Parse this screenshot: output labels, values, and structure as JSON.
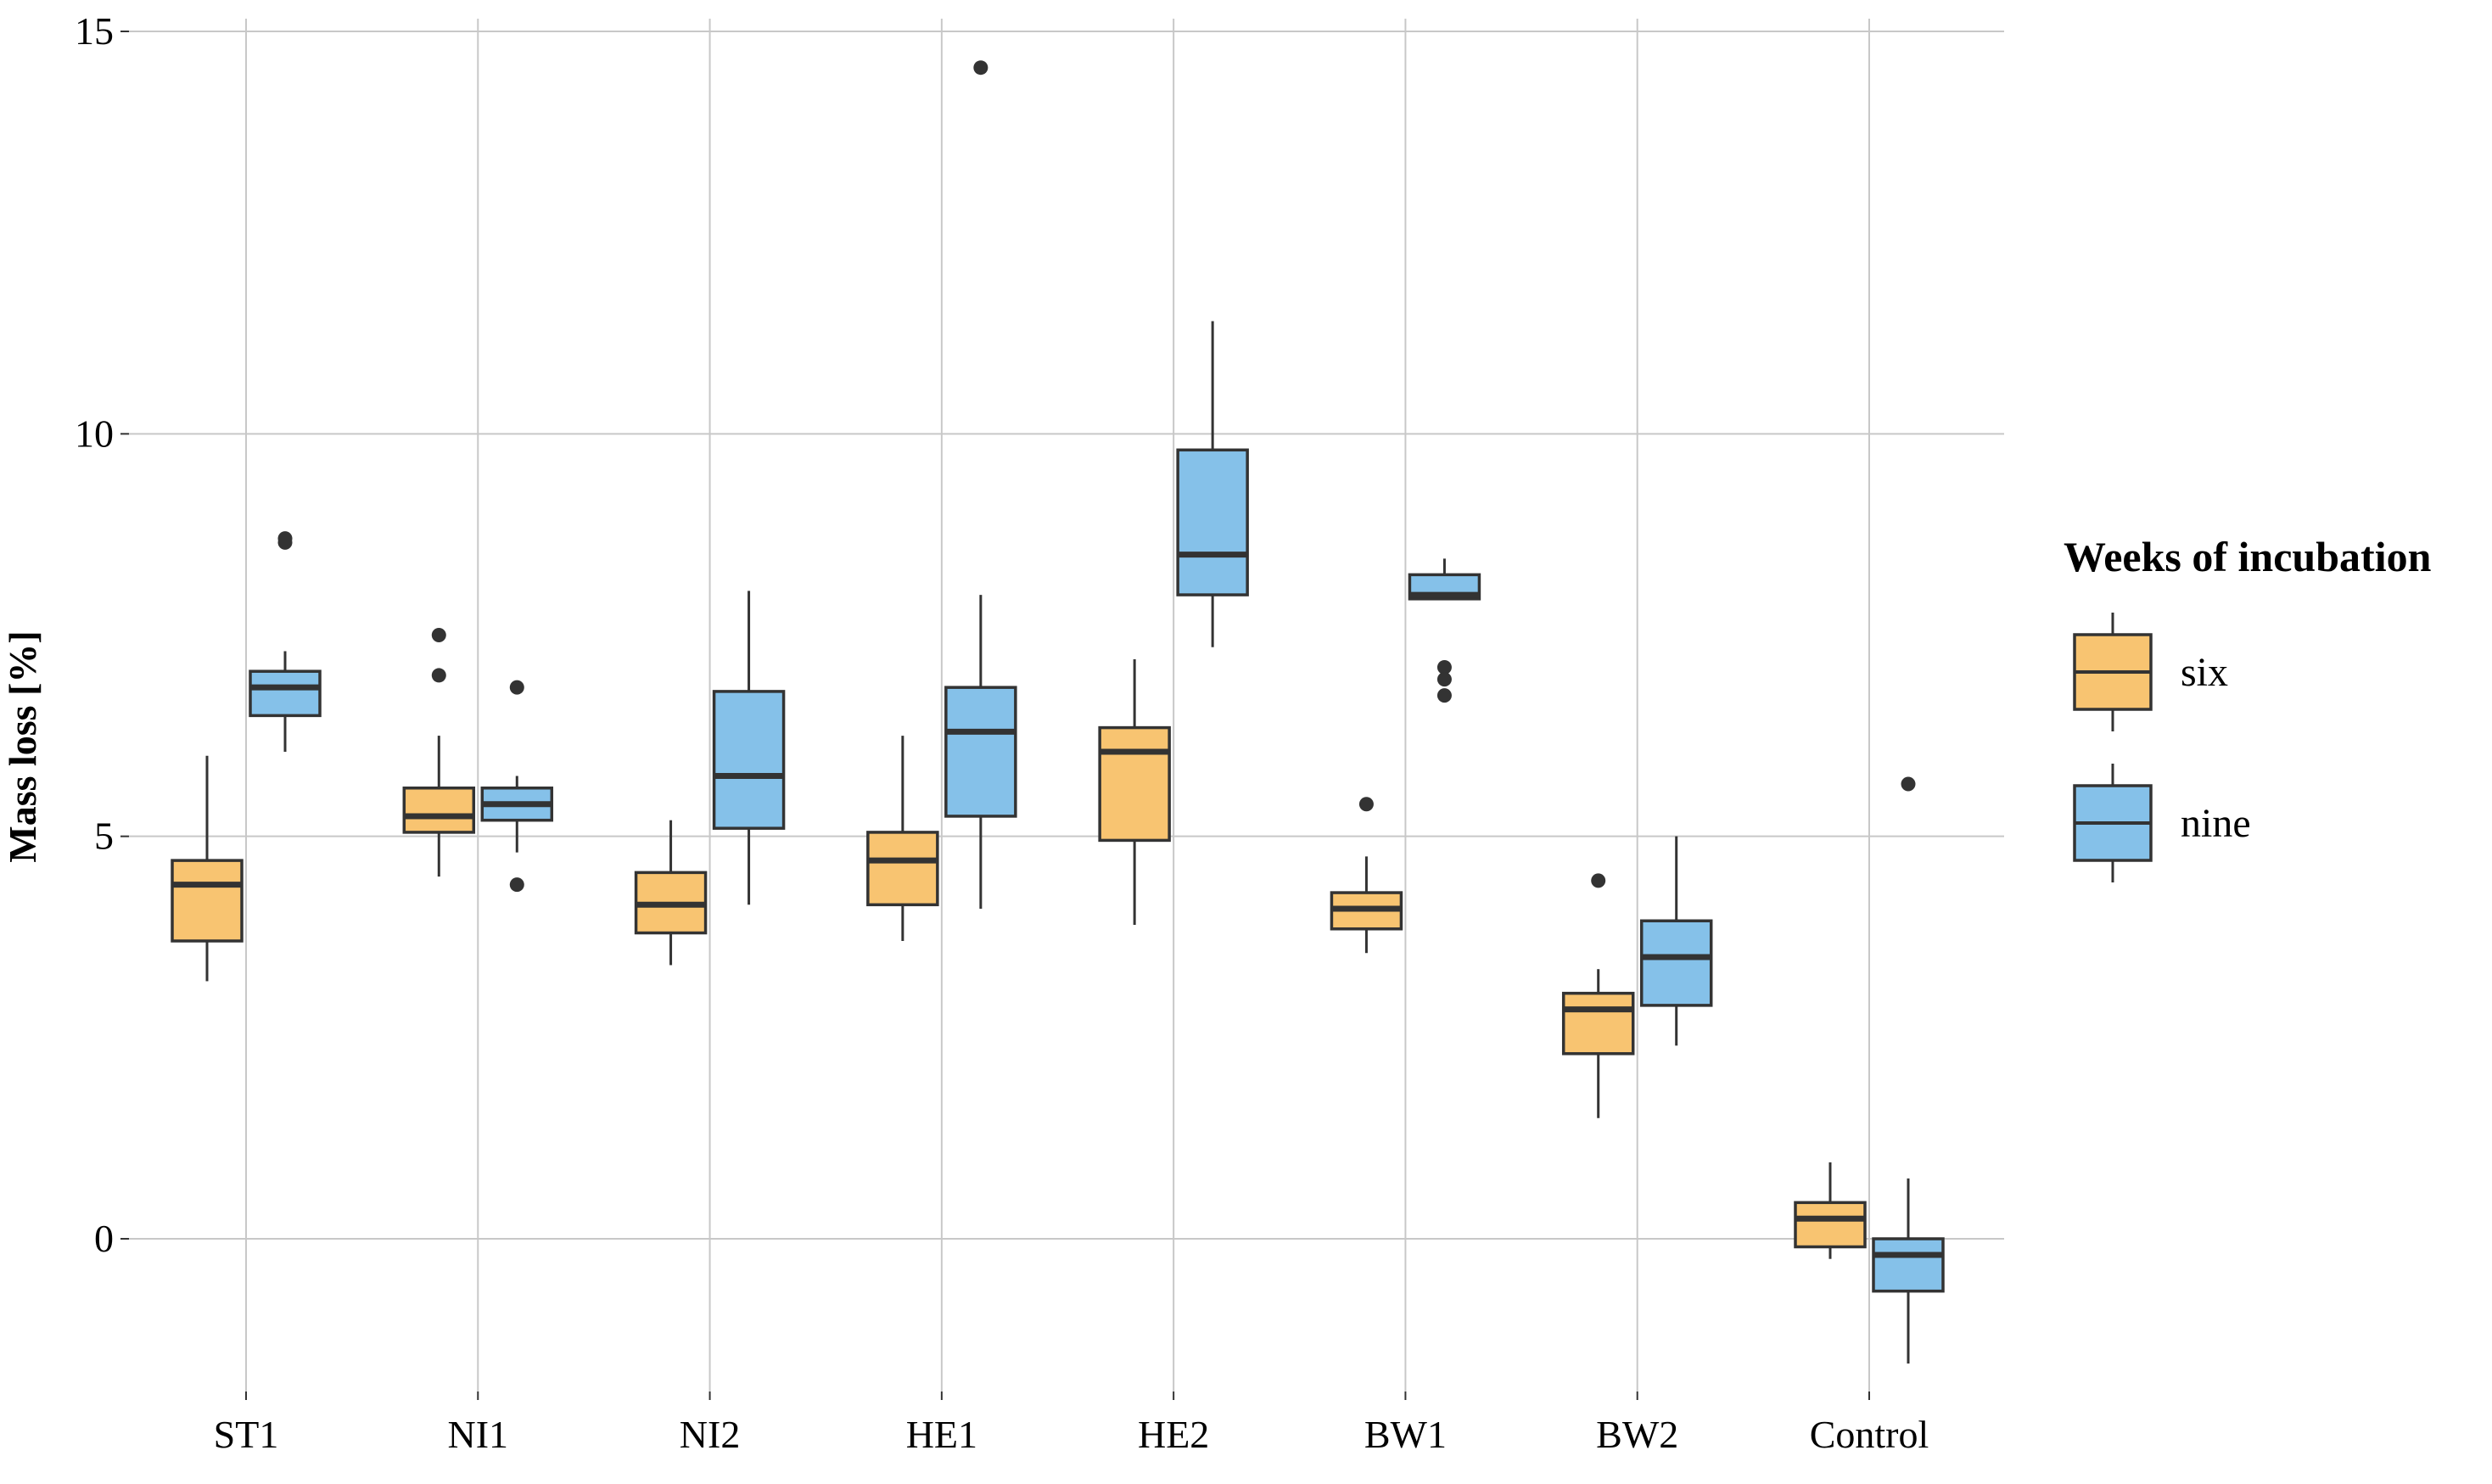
{
  "chart_data": {
    "type": "boxplot",
    "title": "",
    "xlabel": "",
    "ylabel": "Mass loss [%]",
    "ylim": [
      -2.0,
      15.0
    ],
    "yticks": [
      0,
      5,
      10,
      15
    ],
    "ytick_labels": [
      "0",
      "5",
      "10",
      "15"
    ],
    "categories": [
      "ST1",
      "NI1",
      "NI2",
      "HE1",
      "HE2",
      "BW1",
      "BW2",
      "Control"
    ],
    "grid": true,
    "legend": {
      "title": "Weeks of incubation",
      "position": "right",
      "entries": [
        {
          "label": "six",
          "color": "#F8C471"
        },
        {
          "label": "nine",
          "color": "#85C1E9"
        }
      ]
    },
    "series": [
      {
        "name": "six",
        "color": "#F8C471",
        "boxes": [
          {
            "category": "ST1",
            "whisker_low": 3.2,
            "q1": 3.7,
            "median": 4.4,
            "q3": 4.7,
            "whisker_high": 6.0,
            "outliers": []
          },
          {
            "category": "NI1",
            "whisker_low": 4.5,
            "q1": 5.05,
            "median": 5.25,
            "q3": 5.6,
            "whisker_high": 6.25,
            "outliers": [
              7.0,
              7.5
            ]
          },
          {
            "category": "NI2",
            "whisker_low": 3.4,
            "q1": 3.8,
            "median": 4.15,
            "q3": 4.55,
            "whisker_high": 5.2,
            "outliers": []
          },
          {
            "category": "HE1",
            "whisker_low": 3.7,
            "q1": 4.15,
            "median": 4.7,
            "q3": 5.05,
            "whisker_high": 6.25,
            "outliers": []
          },
          {
            "category": "HE2",
            "whisker_low": 3.9,
            "q1": 4.95,
            "median": 6.05,
            "q3": 6.35,
            "whisker_high": 7.2,
            "outliers": []
          },
          {
            "category": "BW1",
            "whisker_low": 3.55,
            "q1": 3.85,
            "median": 4.1,
            "q3": 4.3,
            "whisker_high": 4.75,
            "outliers": [
              5.4
            ]
          },
          {
            "category": "BW2",
            "whisker_low": 1.5,
            "q1": 2.3,
            "median": 2.85,
            "q3": 3.05,
            "whisker_high": 3.35,
            "outliers": [
              4.45
            ]
          },
          {
            "category": "Control",
            "whisker_low": -0.25,
            "q1": -0.1,
            "median": 0.25,
            "q3": 0.45,
            "whisker_high": 0.95,
            "outliers": []
          }
        ]
      },
      {
        "name": "nine",
        "color": "#85C1E9",
        "boxes": [
          {
            "category": "ST1",
            "whisker_low": 6.05,
            "q1": 6.5,
            "median": 6.85,
            "q3": 7.05,
            "whisker_high": 7.3,
            "outliers": [
              8.65,
              8.7
            ]
          },
          {
            "category": "NI1",
            "whisker_low": 4.8,
            "q1": 5.2,
            "median": 5.4,
            "q3": 5.6,
            "whisker_high": 5.75,
            "outliers": [
              6.85,
              4.4
            ]
          },
          {
            "category": "NI2",
            "whisker_low": 4.15,
            "q1": 5.1,
            "median": 5.75,
            "q3": 6.8,
            "whisker_high": 8.05,
            "outliers": []
          },
          {
            "category": "HE1",
            "whisker_low": 4.1,
            "q1": 5.25,
            "median": 6.3,
            "q3": 6.85,
            "whisker_high": 8.0,
            "outliers": [
              14.55
            ]
          },
          {
            "category": "HE2",
            "whisker_low": 7.35,
            "q1": 8.0,
            "median": 8.5,
            "q3": 9.8,
            "whisker_high": 11.4,
            "outliers": []
          },
          {
            "category": "BW1",
            "whisker_low": 7.95,
            "q1": 7.95,
            "median": 8.0,
            "q3": 8.25,
            "whisker_high": 8.45,
            "outliers": [
              7.1,
              6.95,
              6.75
            ]
          },
          {
            "category": "BW2",
            "whisker_low": 2.4,
            "q1": 2.9,
            "median": 3.5,
            "q3": 3.95,
            "whisker_high": 5.0,
            "outliers": []
          },
          {
            "category": "Control",
            "whisker_low": -1.55,
            "q1": -0.65,
            "median": -0.2,
            "q3": 0.0,
            "whisker_high": 0.75,
            "outliers": [
              5.65
            ]
          }
        ]
      }
    ]
  }
}
